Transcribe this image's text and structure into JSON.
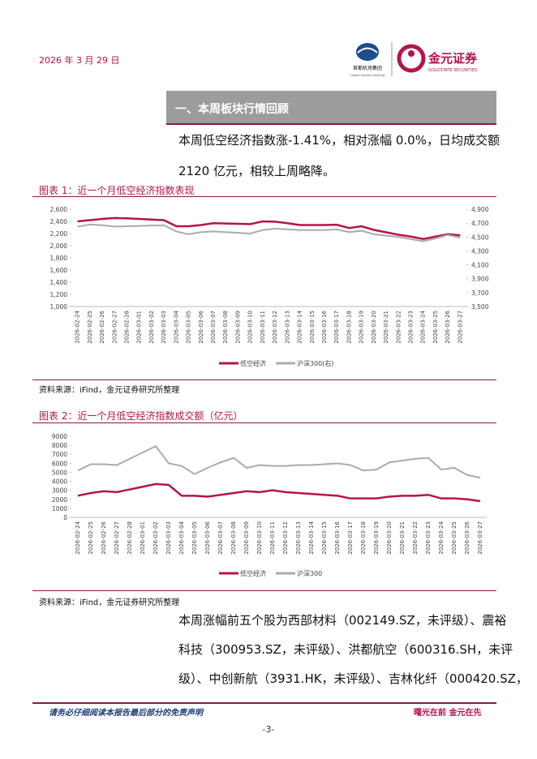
{
  "header": {
    "date": "2026 年 3 月 29 日",
    "logo_left": "首都机场集团",
    "logo_left_en": "Capital Airports Holdings",
    "logo_right": "金元证券",
    "logo_right_en": "GOLDSTATE SECURITIES"
  },
  "section_title": "一、本周板块行情回顾",
  "paragraphs": [
    [
      "本周低空经济指数涨-1.41%，相对涨幅 0.0%，日均成交额",
      "2120 亿元，相较上周略降。"
    ],
    [
      "本周涨幅前五个股为西部材料（002149.SZ，未评级）、震裕",
      "科技（300953.SZ，未评级）、洪都航空（600316.SH，未评",
      "级）、中创新航（3931.HK，未评级）、吉林化纤（000420.SZ，"
    ]
  ],
  "chart_data": [
    {
      "type": "line",
      "title": "图表 1：近一个月低空经济指数表现",
      "source": "资料来源：iFind，金元证券研究所整理",
      "categories": [
        "2026-02-24",
        "2026-02-25",
        "2026-02-26",
        "2026-02-27",
        "2026-02-28",
        "2026-03-01",
        "2026-03-02",
        "2026-03-03",
        "2026-03-04",
        "2026-03-05",
        "2026-03-06",
        "2026-03-07",
        "2026-03-08",
        "2026-03-09",
        "2026-03-10",
        "2026-03-11",
        "2026-03-12",
        "2026-03-13",
        "2026-03-14",
        "2026-03-15",
        "2026-03-16",
        "2026-03-17",
        "2026-03-18",
        "2026-03-19",
        "2026-03-20",
        "2026-03-21",
        "2026-03-22",
        "2026-03-23",
        "2026-03-24",
        "2026-03-25",
        "2026-03-26",
        "2026-03-27"
      ],
      "series": [
        {
          "name": "低空经济",
          "color": "#b5134f",
          "values": [
            2400,
            2420,
            2440,
            2455,
            2450,
            2440,
            2430,
            2420,
            2320,
            2320,
            2340,
            2370,
            2365,
            2360,
            2355,
            2400,
            2395,
            2370,
            2340,
            2340,
            2340,
            2345,
            2290,
            2320,
            2260,
            2220,
            2180,
            2150,
            2110,
            2150,
            2190,
            2170
          ]
        },
        {
          "name": "沪深300(右)",
          "color": "#ababab",
          "axis": "y2",
          "values": [
            4650,
            4680,
            4670,
            4650,
            4655,
            4660,
            4665,
            4670,
            4580,
            4540,
            4570,
            4580,
            4570,
            4560,
            4550,
            4600,
            4620,
            4610,
            4600,
            4600,
            4600,
            4610,
            4570,
            4590,
            4540,
            4520,
            4500,
            4470,
            4440,
            4480,
            4530,
            4490
          ]
        }
      ],
      "ylim": [
        1000,
        2600
      ],
      "yticks": [
        {
          "value": 1000,
          "label": "1,000"
        },
        {
          "value": 1200,
          "label": "1,200"
        },
        {
          "value": 1400,
          "label": "1,400"
        },
        {
          "value": 1600,
          "label": "1,600"
        },
        {
          "value": 1800,
          "label": "1,800"
        },
        {
          "value": 2000,
          "label": "2,000"
        },
        {
          "value": 2200,
          "label": "2,200"
        },
        {
          "value": 2400,
          "label": "2,400"
        },
        {
          "value": 2600,
          "label": "2,600"
        }
      ],
      "y2lim": [
        3500,
        4900
      ],
      "y2ticks": [
        {
          "value": 3500,
          "label": "3,500"
        },
        {
          "value": 3700,
          "label": "3,700"
        },
        {
          "value": 3900,
          "label": "3,900"
        },
        {
          "value": 4100,
          "label": "4,100"
        },
        {
          "value": 4300,
          "label": "4,300"
        },
        {
          "value": 4500,
          "label": "4,500"
        },
        {
          "value": 4700,
          "label": "4,700"
        },
        {
          "value": 4900,
          "label": "4,900"
        }
      ]
    },
    {
      "type": "line",
      "title": "图表 2：近一个月低空经济指数成交额（亿元）",
      "source": "资料来源：iFind，金元证券研究所整理",
      "categories": [
        "2026-02-24",
        "2026-02-25",
        "2026-02-26",
        "2026-02-27",
        "2026-02-28",
        "2026-03-01",
        "2026-03-02",
        "2026-03-03",
        "2026-03-04",
        "2026-03-05",
        "2026-03-06",
        "2026-03-07",
        "2026-03-08",
        "2026-03-09",
        "2026-03-10",
        "2026-03-11",
        "2026-03-12",
        "2026-03-13",
        "2026-03-14",
        "2026-03-15",
        "2026-03-16",
        "2026-03-17",
        "2026-03-18",
        "2026-03-19",
        "2026-03-20",
        "2026-03-21",
        "2026-03-22",
        "2026-03-23",
        "2026-03-24",
        "2026-03-25",
        "2026-03-26",
        "2026-03-27"
      ],
      "series": [
        {
          "name": "低空经济",
          "color": "#b5134f",
          "values": [
            2400,
            2700,
            2900,
            2800,
            3100,
            3400,
            3700,
            3600,
            2400,
            2400,
            2300,
            2500,
            2700,
            2900,
            2800,
            3000,
            2800,
            2700,
            2600,
            2500,
            2400,
            2100,
            2100,
            2100,
            2300,
            2400,
            2400,
            2500,
            2100,
            2100,
            2000,
            1800
          ]
        },
        {
          "name": "沪深300",
          "color": "#ababab",
          "values": [
            5200,
            5900,
            5900,
            5800,
            6500,
            7200,
            7900,
            6000,
            5700,
            4800,
            5500,
            6100,
            6600,
            5500,
            5800,
            5700,
            5700,
            5800,
            5800,
            5900,
            6000,
            5800,
            5200,
            5300,
            6100,
            6300,
            6500,
            6600,
            5300,
            5500,
            4700,
            4400
          ]
        }
      ],
      "ylim": [
        0,
        9000
      ],
      "yticks": [
        0,
        1000,
        2000,
        3000,
        4000,
        5000,
        6000,
        7000,
        8000,
        9000
      ]
    }
  ],
  "footer": {
    "disclaimer": "请务必仔细阅读本报告最后部分的免责声明",
    "slogan": "曙光在前 金元在先",
    "page": "-3-"
  }
}
